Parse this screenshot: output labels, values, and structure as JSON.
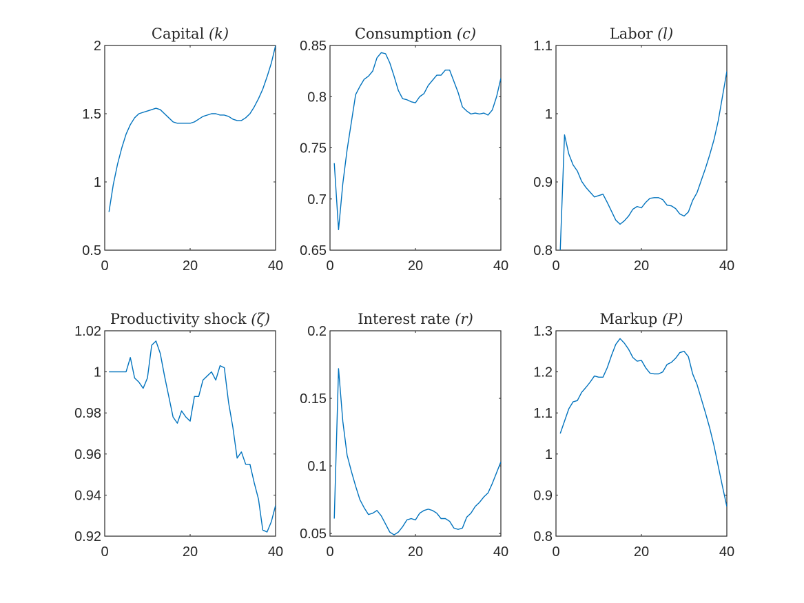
{
  "chart_data": [
    {
      "type": "line",
      "title": "Capital (k)",
      "title_main": "Capital ",
      "title_symbol": "(k)",
      "xlim": [
        0,
        40
      ],
      "ylim": [
        0.5,
        2
      ],
      "xticks": [
        0,
        20,
        40
      ],
      "xtick_labels": [
        "0",
        "20",
        "40"
      ],
      "yticks": [
        0.5,
        1,
        1.5,
        2
      ],
      "ytick_labels": [
        "0.5",
        "1",
        "1.5",
        "2"
      ],
      "color": "#0072BD",
      "series": [
        {
          "x": [
            1,
            2,
            3,
            4,
            5,
            6,
            7,
            8,
            9,
            10,
            11,
            12,
            13,
            14,
            15,
            16,
            17,
            18,
            19,
            20,
            21,
            22,
            23,
            24,
            25,
            26,
            27,
            28,
            29,
            30,
            31,
            32,
            33,
            34,
            35,
            36,
            37,
            38,
            39,
            40
          ],
          "values": [
            0.78,
            0.98,
            1.13,
            1.25,
            1.35,
            1.42,
            1.47,
            1.5,
            1.51,
            1.52,
            1.53,
            1.54,
            1.53,
            1.5,
            1.47,
            1.44,
            1.43,
            1.43,
            1.43,
            1.43,
            1.44,
            1.46,
            1.48,
            1.49,
            1.5,
            1.5,
            1.49,
            1.49,
            1.48,
            1.46,
            1.45,
            1.45,
            1.47,
            1.5,
            1.55,
            1.61,
            1.68,
            1.77,
            1.87,
            2.0
          ]
        }
      ]
    },
    {
      "type": "line",
      "title": "Consumption (c)",
      "title_main": "Consumption ",
      "title_symbol": "(c)",
      "xlim": [
        0,
        40
      ],
      "ylim": [
        0.65,
        0.85
      ],
      "xticks": [
        0,
        20,
        40
      ],
      "xtick_labels": [
        "0",
        "20",
        "40"
      ],
      "yticks": [
        0.65,
        0.7,
        0.75,
        0.8,
        0.85
      ],
      "ytick_labels": [
        "0.65",
        "0.7",
        "0.75",
        "0.8",
        "0.85"
      ],
      "color": "#0072BD",
      "series": [
        {
          "x": [
            1,
            2,
            3,
            4,
            5,
            6,
            7,
            8,
            9,
            10,
            11,
            12,
            13,
            14,
            15,
            16,
            17,
            18,
            19,
            20,
            21,
            22,
            23,
            24,
            25,
            26,
            27,
            28,
            29,
            30,
            31,
            32,
            33,
            34,
            35,
            36,
            37,
            38,
            39,
            40
          ],
          "values": [
            0.735,
            0.67,
            0.715,
            0.748,
            0.775,
            0.802,
            0.81,
            0.817,
            0.82,
            0.825,
            0.838,
            0.843,
            0.842,
            0.833,
            0.82,
            0.806,
            0.798,
            0.797,
            0.795,
            0.794,
            0.8,
            0.803,
            0.811,
            0.816,
            0.821,
            0.821,
            0.826,
            0.826,
            0.815,
            0.804,
            0.79,
            0.786,
            0.783,
            0.784,
            0.783,
            0.784,
            0.782,
            0.787,
            0.8,
            0.818
          ]
        }
      ]
    },
    {
      "type": "line",
      "title": "Labor (l)",
      "title_main": "Labor ",
      "title_symbol": "(l)",
      "xlim": [
        0,
        40
      ],
      "ylim": [
        0.8,
        1.1
      ],
      "xticks": [
        0,
        20,
        40
      ],
      "xtick_labels": [
        "0",
        "20",
        "40"
      ],
      "yticks": [
        0.8,
        0.9,
        1,
        1.1
      ],
      "ytick_labels": [
        "0.8",
        "0.9",
        "1",
        "1.1"
      ],
      "color": "#0072BD",
      "series": [
        {
          "x": [
            1,
            2,
            3,
            4,
            5,
            6,
            7,
            8,
            9,
            10,
            11,
            12,
            13,
            14,
            15,
            16,
            17,
            18,
            19,
            20,
            21,
            22,
            23,
            24,
            25,
            26,
            27,
            28,
            29,
            30,
            31,
            32,
            33,
            34,
            35,
            36,
            37,
            38,
            39,
            40
          ],
          "values": [
            0.8,
            0.969,
            0.941,
            0.925,
            0.916,
            0.901,
            0.892,
            0.885,
            0.878,
            0.88,
            0.882,
            0.87,
            0.857,
            0.844,
            0.838,
            0.843,
            0.85,
            0.86,
            0.864,
            0.862,
            0.87,
            0.876,
            0.877,
            0.877,
            0.874,
            0.866,
            0.865,
            0.861,
            0.853,
            0.85,
            0.856,
            0.873,
            0.884,
            0.902,
            0.92,
            0.94,
            0.962,
            0.99,
            1.026,
            1.062
          ]
        }
      ]
    },
    {
      "type": "line",
      "title": "Productivity shock (ζ)",
      "title_main": "Productivity shock ",
      "title_symbol": "(ζ)",
      "xlim": [
        0,
        40
      ],
      "ylim": [
        0.92,
        1.02
      ],
      "xticks": [
        0,
        20,
        40
      ],
      "xtick_labels": [
        "0",
        "20",
        "40"
      ],
      "yticks": [
        0.92,
        0.94,
        0.96,
        0.98,
        1,
        1.02
      ],
      "ytick_labels": [
        "0.92",
        "0.94",
        "0.96",
        "0.98",
        "1",
        "1.02"
      ],
      "color": "#0072BD",
      "series": [
        {
          "x": [
            1,
            2,
            3,
            4,
            5,
            6,
            7,
            8,
            9,
            10,
            11,
            12,
            13,
            14,
            15,
            16,
            17,
            18,
            19,
            20,
            21,
            22,
            23,
            24,
            25,
            26,
            27,
            28,
            29,
            30,
            31,
            32,
            33,
            34,
            35,
            36,
            37,
            38,
            39,
            40
          ],
          "values": [
            1.0,
            1.0,
            1.0,
            1.0,
            1.0,
            1.007,
            0.997,
            0.995,
            0.992,
            0.997,
            1.013,
            1.015,
            1.009,
            0.998,
            0.988,
            0.978,
            0.975,
            0.981,
            0.978,
            0.976,
            0.988,
            0.988,
            0.996,
            0.998,
            1.0,
            0.996,
            1.003,
            1.002,
            0.985,
            0.973,
            0.958,
            0.961,
            0.955,
            0.955,
            0.946,
            0.938,
            0.923,
            0.922,
            0.927,
            0.935
          ]
        }
      ]
    },
    {
      "type": "line",
      "title": "Interest rate (r)",
      "title_main": "Interest rate ",
      "title_symbol": "(r)",
      "xlim": [
        0,
        40
      ],
      "ylim": [
        0.048,
        0.2
      ],
      "xticks": [
        0,
        20,
        40
      ],
      "xtick_labels": [
        "0",
        "20",
        "40"
      ],
      "yticks": [
        0.05,
        0.1,
        0.15,
        0.2
      ],
      "ytick_labels": [
        "0.05",
        "0.1",
        "0.15",
        "0.2"
      ],
      "color": "#0072BD",
      "series": [
        {
          "x": [
            1,
            2,
            3,
            4,
            5,
            6,
            7,
            8,
            9,
            10,
            11,
            12,
            13,
            14,
            15,
            16,
            17,
            18,
            19,
            20,
            21,
            22,
            23,
            24,
            25,
            26,
            27,
            28,
            29,
            30,
            31,
            32,
            33,
            34,
            35,
            36,
            37,
            38,
            39,
            40
          ],
          "values": [
            0.061,
            0.172,
            0.133,
            0.108,
            0.096,
            0.085,
            0.075,
            0.069,
            0.064,
            0.065,
            0.067,
            0.063,
            0.057,
            0.051,
            0.049,
            0.051,
            0.055,
            0.06,
            0.061,
            0.06,
            0.065,
            0.067,
            0.068,
            0.067,
            0.065,
            0.061,
            0.061,
            0.059,
            0.054,
            0.053,
            0.054,
            0.062,
            0.065,
            0.07,
            0.073,
            0.077,
            0.08,
            0.087,
            0.095,
            0.103
          ]
        }
      ]
    },
    {
      "type": "line",
      "title": "Markup (P)",
      "title_main": "Markup ",
      "title_symbol": "(P)",
      "xlim": [
        0,
        40
      ],
      "ylim": [
        0.8,
        1.3
      ],
      "xticks": [
        0,
        20,
        40
      ],
      "xtick_labels": [
        "0",
        "20",
        "40"
      ],
      "yticks": [
        0.8,
        0.9,
        1,
        1.1,
        1.2,
        1.3
      ],
      "ytick_labels": [
        "0.8",
        "0.9",
        "1",
        "1.1",
        "1.2",
        "1.3"
      ],
      "color": "#0072BD",
      "series": [
        {
          "x": [
            1,
            2,
            3,
            4,
            5,
            6,
            7,
            8,
            9,
            10,
            11,
            12,
            13,
            14,
            15,
            16,
            17,
            18,
            19,
            20,
            21,
            22,
            23,
            24,
            25,
            26,
            27,
            28,
            29,
            30,
            31,
            32,
            33,
            34,
            35,
            36,
            37,
            38,
            39,
            40
          ],
          "values": [
            1.05,
            1.08,
            1.11,
            1.127,
            1.13,
            1.15,
            1.162,
            1.175,
            1.19,
            1.187,
            1.187,
            1.21,
            1.24,
            1.267,
            1.281,
            1.27,
            1.255,
            1.235,
            1.226,
            1.228,
            1.21,
            1.197,
            1.195,
            1.195,
            1.2,
            1.218,
            1.223,
            1.233,
            1.247,
            1.25,
            1.237,
            1.195,
            1.17,
            1.135,
            1.1,
            1.063,
            1.02,
            0.97,
            0.92,
            0.872
          ]
        }
      ]
    }
  ]
}
